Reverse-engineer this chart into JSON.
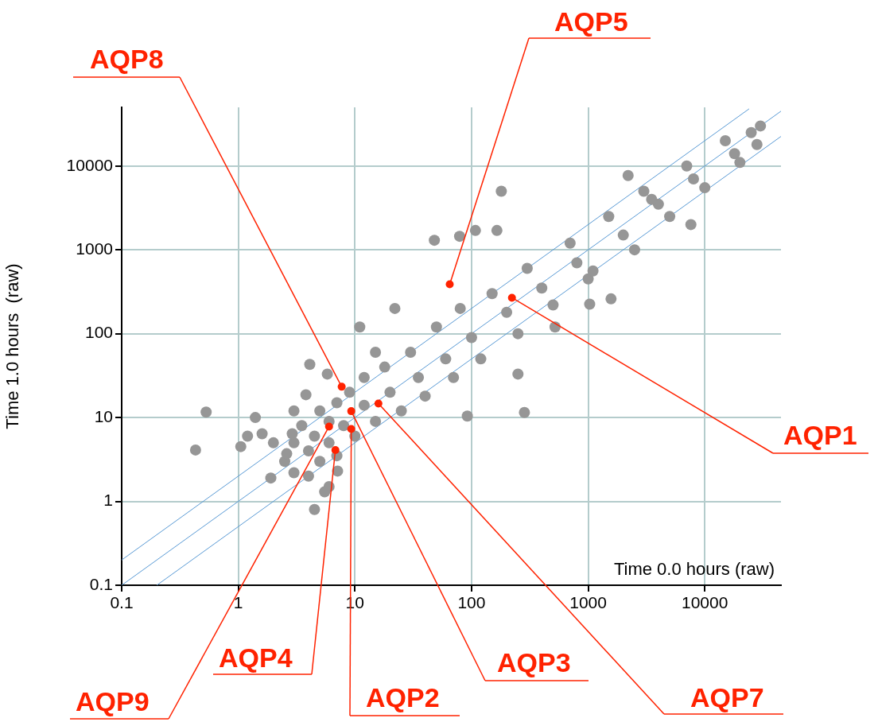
{
  "chart_data": {
    "type": "scatter",
    "xlabel": "Time 0.0 hours (raw)",
    "ylabel": "Time 1.0 hours  (raw)",
    "log": "xy",
    "grid": true,
    "legend": false,
    "marker": "circle",
    "xlim": [
      0.1,
      45000
    ],
    "ylim": [
      0.1,
      50000
    ],
    "xticks": [
      0.1,
      1,
      10,
      100,
      1000,
      10000
    ],
    "yticks": [
      0.1,
      1,
      10,
      100,
      1000,
      10000
    ],
    "series": [
      {
        "type": "scatter",
        "color": "#969696",
        "x": [
          2.5,
          3,
          3,
          3.5,
          4,
          4,
          4.5,
          5,
          5,
          6,
          6,
          7,
          7,
          8,
          9,
          10,
          12,
          12,
          15,
          18,
          20,
          25,
          30,
          35,
          40,
          50,
          60,
          70,
          80,
          100,
          120,
          150,
          200,
          250,
          300,
          400,
          500,
          700,
          800,
          1000,
          1500,
          2000,
          2500,
          3000,
          4000,
          5000,
          7000,
          8000,
          10000,
          15000,
          18000,
          20000,
          25000,
          30000,
          28000,
          22,
          11,
          15,
          48,
          79,
          108,
          165,
          180,
          3.8,
          4.1,
          5.8,
          2.9,
          1.6,
          1.4,
          1.05,
          0.53,
          0.43,
          1.9,
          2.6,
          4.5,
          7.1,
          92,
          284,
          250,
          520,
          1030,
          1570,
          1100,
          2200,
          3500,
          7600,
          1.2,
          2,
          3,
          6,
          5.5
        ],
        "values": [
          3,
          5,
          2.2,
          8,
          4,
          2,
          6,
          12,
          3,
          9,
          5,
          15,
          3.5,
          8,
          20,
          6,
          14,
          30,
          9,
          40,
          20,
          12,
          60,
          30,
          18,
          120,
          50,
          30,
          200,
          90,
          50,
          300,
          180,
          100,
          600,
          350,
          220,
          1200,
          700,
          450,
          2500,
          1500,
          1000,
          5000,
          3500,
          2500,
          10000,
          7000,
          5500,
          20000,
          14000,
          11000,
          25000,
          30000,
          18000,
          200,
          120,
          60,
          1300,
          1450,
          1700,
          1700,
          5000,
          18.7,
          43,
          33,
          6.4,
          6.4,
          10,
          4.5,
          11.6,
          4.1,
          1.9,
          3.7,
          0.8,
          2.3,
          10.4,
          11.5,
          33,
          120,
          225,
          260,
          560,
          7700,
          4000,
          2000,
          6,
          5,
          12,
          1.5,
          1.3
        ]
      },
      {
        "type": "line",
        "marker": "none",
        "color": "#5b9bd5",
        "x": [
          0.1,
          24000
        ],
        "values": [
          0.2,
          48000
        ]
      },
      {
        "type": "line",
        "marker": "none",
        "color": "#5b9bd5",
        "x": [
          0.1,
          45000
        ],
        "values": [
          0.1,
          45000
        ]
      },
      {
        "type": "line",
        "marker": "none",
        "color": "#5b9bd5",
        "x": [
          0.2,
          45000
        ],
        "values": [
          0.1,
          22500
        ]
      },
      {
        "type": "scatter",
        "color": "#ff2200",
        "x": [
          7.7,
          65,
          222,
          15.9,
          9.3,
          9.3,
          6.8,
          6.0
        ],
        "values": [
          23.3,
          388,
          268,
          14.7,
          11.9,
          7.3,
          4.1,
          7.8
        ]
      }
    ],
    "annotations": [
      {
        "text": "AQP8",
        "x": 7.7,
        "y": 23.3
      },
      {
        "text": "AQP5",
        "x": 65,
        "y": 388
      },
      {
        "text": "AQP1",
        "x": 222,
        "y": 268
      },
      {
        "text": "AQP7",
        "x": 15.9,
        "y": 14.7
      },
      {
        "text": "AQP3",
        "x": 9.3,
        "y": 11.9
      },
      {
        "text": "AQP2",
        "x": 9.3,
        "y": 7.3
      },
      {
        "text": "AQP4",
        "x": 6.8,
        "y": 4.1
      },
      {
        "text": "AQP9",
        "x": 6.0,
        "y": 7.8
      }
    ]
  }
}
